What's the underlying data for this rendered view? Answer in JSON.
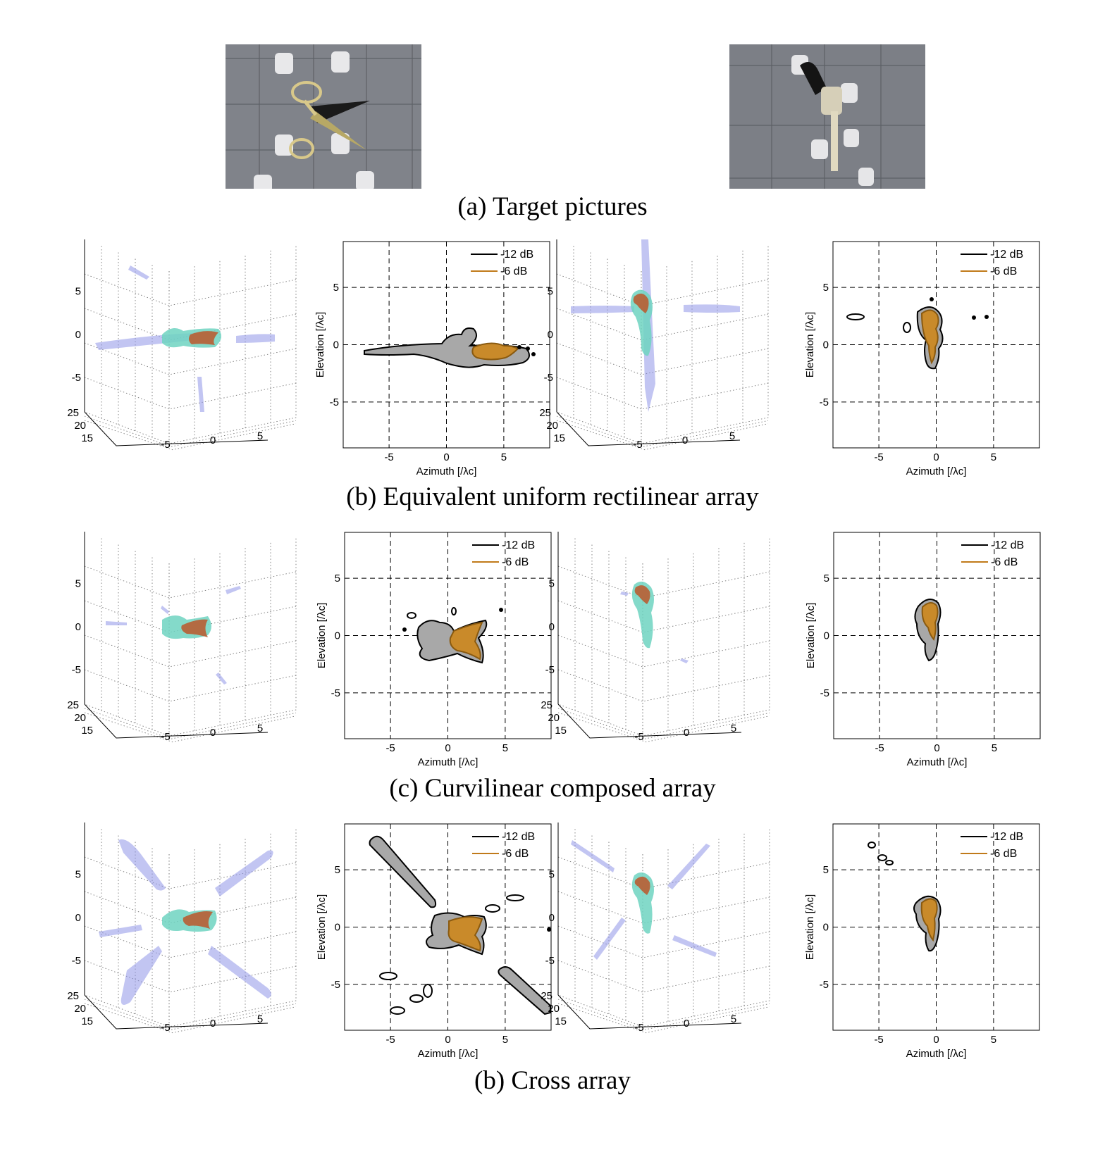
{
  "captions": {
    "a": "(a) Target pictures",
    "b": "(b) Equivalent uniform rectilinear array",
    "c": "(c) Curvilinear composed array",
    "d": "(b) Cross array"
  },
  "axes": {
    "xlabel": "Azimuth [/λc]",
    "ylabel": "Elevation [/λc]",
    "x_ticks": [
      "-5",
      "0",
      "5"
    ],
    "y_ticks": [
      "5",
      "0",
      "-5"
    ],
    "xlim": [
      -9,
      9
    ],
    "ylim": [
      -9,
      9
    ],
    "grid": "dashed"
  },
  "axes3d": {
    "z_ticks": [
      "5",
      "0",
      "-5"
    ],
    "range_ticks": [
      "25",
      "20",
      "15"
    ],
    "x_ticks": [
      "-5",
      "0",
      "5"
    ]
  },
  "legend": {
    "placement": "top-right",
    "entries": [
      {
        "label": "-12 dB",
        "color": "#000000"
      },
      {
        "label": "-6 dB",
        "color": "#c07a1a"
      }
    ]
  },
  "colors": {
    "contour_fill_12": "#a8a8a8",
    "contour_fill_6": "#c98a2a",
    "core_3d": "#b5643a",
    "halo_3d": "#6fd3c1",
    "sidelobe_3d": "#8f95e8",
    "photo_wall": "#7d8086"
  },
  "photos": [
    {
      "name": "scissors-photo",
      "object": "scissors"
    },
    {
      "name": "revolver-photo",
      "object": "revolver"
    }
  ]
}
